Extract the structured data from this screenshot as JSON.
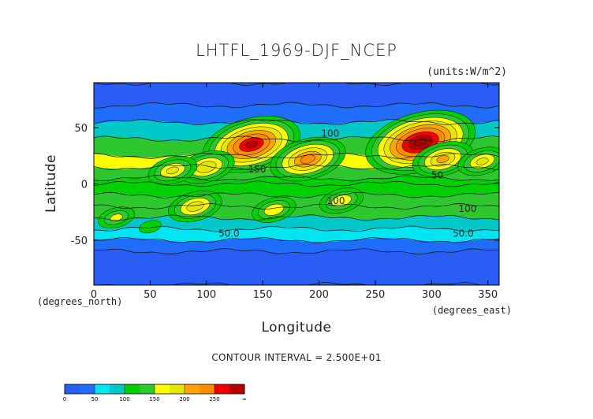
{
  "chart_data": {
    "type": "heatmap",
    "title": "LHTFL_1969-DJF_NCEP",
    "units_label": "(units:W/m^2)",
    "xlabel": "Longitude",
    "ylabel": "Latitude",
    "x_unit_label": "(degrees_east)",
    "y_unit_label": "(degrees_north)",
    "xlim": [
      0,
      360
    ],
    "ylim": [
      -90,
      90
    ],
    "x_ticks": [
      0,
      50,
      100,
      150,
      200,
      250,
      300,
      350
    ],
    "y_ticks": [
      50,
      0,
      -50
    ],
    "contour_interval_text": "CONTOUR INTERVAL = 2.500E+01",
    "contour_labels": [
      {
        "text": "100",
        "lon": 210,
        "lat": 42
      },
      {
        "text": "150",
        "lon": 145,
        "lat": 10
      },
      {
        "text": "100",
        "lon": 215,
        "lat": -18
      },
      {
        "text": "50.0",
        "lon": 120,
        "lat": -47
      },
      {
        "text": "50",
        "lon": 305,
        "lat": 5
      },
      {
        "text": "100",
        "lon": 332,
        "lat": -25
      },
      {
        "text": "50.0",
        "lon": 328,
        "lat": -47
      }
    ],
    "levels": [
      0,
      25,
      50,
      75,
      100,
      125,
      150,
      175,
      200,
      225,
      250,
      275,
      300
    ],
    "level_colors": [
      "#2a5df4",
      "#1f6dfa",
      "#00e6f0",
      "#00c8c8",
      "#00d000",
      "#2ec82e",
      "#ffff00",
      "#e6e600",
      "#ffa500",
      "#ff8c00",
      "#f00000",
      "#b40000",
      "#a00000"
    ],
    "colorbar_labels": [
      "0",
      "50",
      "100",
      "150",
      "200",
      "250",
      "∞"
    ],
    "field_by_latitude": [
      {
        "lat": 90,
        "value": 10
      },
      {
        "lat": 70,
        "value": 15
      },
      {
        "lat": 55,
        "value": 45
      },
      {
        "lat": 40,
        "value": 120
      },
      {
        "lat": 25,
        "value": 160
      },
      {
        "lat": 15,
        "value": 145
      },
      {
        "lat": 5,
        "value": 110
      },
      {
        "lat": 0,
        "value": 95
      },
      {
        "lat": -10,
        "value": 110
      },
      {
        "lat": -20,
        "value": 140
      },
      {
        "lat": -30,
        "value": 110
      },
      {
        "lat": -40,
        "value": 70
      },
      {
        "lat": -50,
        "value": 40
      },
      {
        "lat": -60,
        "value": 20
      },
      {
        "lat": -90,
        "value": 10
      }
    ],
    "maxima": [
      {
        "lon": 140,
        "lat": 35,
        "value": 275
      },
      {
        "lon": 290,
        "lat": 37,
        "value": 300
      },
      {
        "lon": 190,
        "lat": 22,
        "value": 230
      },
      {
        "lon": 310,
        "lat": 22,
        "value": 200
      },
      {
        "lon": 100,
        "lat": 15,
        "value": 190
      },
      {
        "lon": 70,
        "lat": 12,
        "value": 175
      },
      {
        "lon": 345,
        "lat": 20,
        "value": 175
      },
      {
        "lon": 90,
        "lat": -20,
        "value": 185
      },
      {
        "lon": 160,
        "lat": -23,
        "value": 165
      },
      {
        "lon": 220,
        "lat": -15,
        "value": 165
      },
      {
        "lon": 20,
        "lat": -30,
        "value": 150
      },
      {
        "lon": 50,
        "lat": -38,
        "value": 120
      }
    ]
  }
}
